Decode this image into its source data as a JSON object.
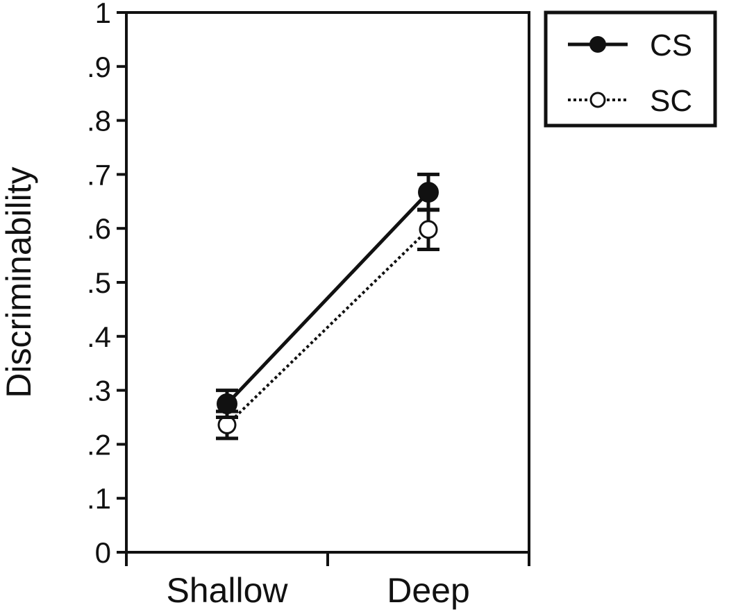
{
  "chart_data": {
    "type": "line",
    "title": "",
    "xlabel": "",
    "ylabel": "Discriminability",
    "categories": [
      "Shallow",
      "Deep"
    ],
    "ylim": [
      0,
      1
    ],
    "yticks": [
      "0",
      ".1",
      ".2",
      ".3",
      ".4",
      ".5",
      ".6",
      ".7",
      ".8",
      ".9",
      "1"
    ],
    "grid": false,
    "legend_position": "top-right, outside plot",
    "series": [
      {
        "name": "CS",
        "values": [
          0.275,
          0.667
        ],
        "error": [
          0.025,
          0.033
        ],
        "line_style": "solid",
        "marker": "filled-circle"
      },
      {
        "name": "SC",
        "values": [
          0.236,
          0.598
        ],
        "error": [
          0.025,
          0.037
        ],
        "line_style": "dotted",
        "marker": "open-circle"
      }
    ]
  }
}
